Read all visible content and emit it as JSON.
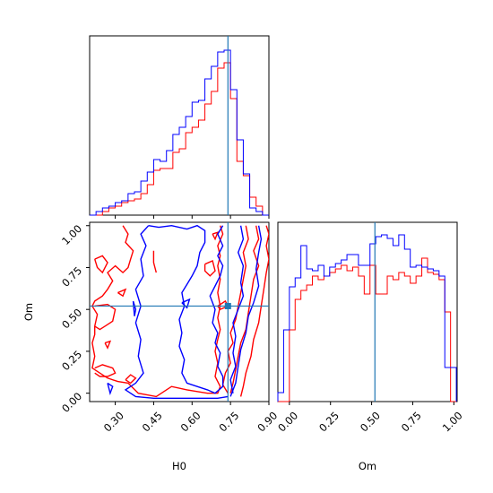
{
  "chart_data": [
    {
      "panel": "H0-marginal",
      "type": "histogram-step",
      "xlim": [
        0.2,
        0.9
      ],
      "bin_edges": [
        0.2,
        0.225,
        0.25,
        0.275,
        0.3,
        0.325,
        0.35,
        0.375,
        0.4,
        0.425,
        0.45,
        0.475,
        0.5,
        0.525,
        0.55,
        0.575,
        0.6,
        0.625,
        0.65,
        0.675,
        0.7,
        0.725,
        0.75,
        0.775,
        0.8,
        0.825,
        0.85,
        0.875,
        0.9
      ],
      "series": [
        {
          "color": "#ff0000",
          "values": [
            0,
            0,
            0.02,
            0.04,
            0.05,
            0.07,
            0.08,
            0.09,
            0.12,
            0.17,
            0.25,
            0.26,
            0.26,
            0.35,
            0.37,
            0.46,
            0.49,
            0.53,
            0.62,
            0.69,
            0.82,
            0.85,
            0.65,
            0.3,
            0.22,
            0.1,
            0.05,
            0
          ]
        },
        {
          "color": "#0000ff",
          "values": [
            0,
            0.02,
            0.04,
            0.05,
            0.07,
            0.08,
            0.12,
            0.13,
            0.19,
            0.24,
            0.31,
            0.3,
            0.36,
            0.45,
            0.49,
            0.55,
            0.63,
            0.64,
            0.76,
            0.83,
            0.91,
            0.92,
            0.7,
            0.42,
            0.23,
            0.04,
            0.02,
            0
          ]
        }
      ],
      "truth": 0.74
    },
    {
      "panel": "H0-Om-contours",
      "type": "contour",
      "xlabel": "H0",
      "ylabel": "Om",
      "xlim": [
        0.2,
        0.9
      ],
      "ylim": [
        -0.05,
        1.02
      ],
      "xticks": [
        "0.30",
        "0.45",
        "0.60",
        "0.75",
        "0.90"
      ],
      "yticks": [
        "0.00",
        "0.25",
        "0.50",
        "0.75",
        "1.00"
      ],
      "truth": [
        0.74,
        0.52
      ],
      "red_contours": [
        [
          [
            0.33,
            1.0
          ],
          [
            0.35,
            0.95
          ],
          [
            0.34,
            0.9
          ],
          [
            0.37,
            0.85
          ],
          [
            0.36,
            0.8
          ],
          [
            0.35,
            0.75
          ],
          [
            0.33,
            0.72
          ],
          [
            0.3,
            0.76
          ],
          [
            0.27,
            0.72
          ],
          [
            0.29,
            0.67
          ],
          [
            0.27,
            0.62
          ],
          [
            0.25,
            0.58
          ],
          [
            0.22,
            0.55
          ],
          [
            0.21,
            0.52
          ],
          [
            0.23,
            0.47
          ],
          [
            0.22,
            0.4
          ],
          [
            0.22,
            0.35
          ],
          [
            0.21,
            0.3
          ],
          [
            0.22,
            0.22
          ],
          [
            0.21,
            0.15
          ],
          [
            0.24,
            0.12
          ],
          [
            0.27,
            0.09
          ],
          [
            0.31,
            0.07
          ],
          [
            0.35,
            0.06
          ],
          [
            0.39,
            0.0
          ],
          [
            0.46,
            -0.02
          ],
          [
            0.52,
            0.04
          ],
          [
            0.58,
            0.02
          ],
          [
            0.62,
            0.01
          ],
          [
            0.66,
            0.0
          ],
          [
            0.7,
            0.0
          ],
          [
            0.71,
            0.04
          ],
          [
            0.69,
            0.1
          ],
          [
            0.7,
            0.18
          ],
          [
            0.69,
            0.25
          ],
          [
            0.7,
            0.32
          ],
          [
            0.71,
            0.38
          ],
          [
            0.7,
            0.45
          ],
          [
            0.71,
            0.52
          ],
          [
            0.7,
            0.6
          ],
          [
            0.71,
            0.68
          ],
          [
            0.7,
            0.76
          ],
          [
            0.71,
            0.82
          ],
          [
            0.7,
            0.88
          ],
          [
            0.72,
            0.95
          ],
          [
            0.71,
            1.0
          ]
        ],
        [
          [
            0.45,
            0.85
          ],
          [
            0.45,
            0.78
          ],
          [
            0.46,
            0.72
          ]
        ],
        [
          [
            0.74,
            0.0
          ],
          [
            0.72,
            0.05
          ],
          [
            0.73,
            0.12
          ],
          [
            0.75,
            0.18
          ],
          [
            0.74,
            0.25
          ],
          [
            0.76,
            0.3
          ],
          [
            0.75,
            0.36
          ],
          [
            0.77,
            0.44
          ],
          [
            0.78,
            0.52
          ],
          [
            0.79,
            0.6
          ],
          [
            0.8,
            0.68
          ],
          [
            0.81,
            0.76
          ],
          [
            0.8,
            0.84
          ],
          [
            0.82,
            0.92
          ],
          [
            0.81,
            1.0
          ]
        ],
        [
          [
            0.85,
            1.0
          ],
          [
            0.86,
            0.92
          ],
          [
            0.84,
            0.85
          ],
          [
            0.86,
            0.76
          ],
          [
            0.84,
            0.68
          ],
          [
            0.83,
            0.58
          ],
          [
            0.82,
            0.48
          ],
          [
            0.81,
            0.38
          ],
          [
            0.79,
            0.3
          ],
          [
            0.78,
            0.22
          ],
          [
            0.77,
            0.14
          ],
          [
            0.76,
            0.06
          ],
          [
            0.75,
            0.0
          ]
        ],
        [
          [
            0.89,
            1.0
          ],
          [
            0.9,
            0.95
          ],
          [
            0.89,
            0.88
          ],
          [
            0.9,
            0.8
          ],
          [
            0.89,
            0.72
          ],
          [
            0.88,
            0.62
          ],
          [
            0.87,
            0.52
          ],
          [
            0.86,
            0.42
          ],
          [
            0.84,
            0.32
          ],
          [
            0.83,
            0.22
          ],
          [
            0.81,
            0.12
          ],
          [
            0.8,
            0.04
          ],
          [
            0.79,
            -0.02
          ]
        ],
        [
          [
            0.22,
            0.8
          ],
          [
            0.25,
            0.82
          ],
          [
            0.27,
            0.78
          ],
          [
            0.25,
            0.72
          ],
          [
            0.23,
            0.75
          ],
          [
            0.22,
            0.8
          ]
        ],
        [
          [
            0.31,
            0.6
          ],
          [
            0.34,
            0.62
          ],
          [
            0.33,
            0.58
          ],
          [
            0.31,
            0.6
          ]
        ],
        [
          [
            0.22,
            0.52
          ],
          [
            0.27,
            0.53
          ],
          [
            0.3,
            0.5
          ],
          [
            0.29,
            0.43
          ],
          [
            0.26,
            0.4
          ],
          [
            0.24,
            0.38
          ],
          [
            0.22,
            0.4
          ]
        ],
        [
          [
            0.26,
            0.3
          ],
          [
            0.28,
            0.31
          ],
          [
            0.27,
            0.27
          ],
          [
            0.26,
            0.3
          ]
        ],
        [
          [
            0.22,
            0.15
          ],
          [
            0.25,
            0.17
          ],
          [
            0.29,
            0.15
          ],
          [
            0.3,
            0.12
          ],
          [
            0.27,
            0.1
          ],
          [
            0.24,
            0.1
          ],
          [
            0.22,
            0.12
          ]
        ],
        [
          [
            0.68,
            0.95
          ],
          [
            0.69,
            0.92
          ],
          [
            0.7,
            0.96
          ],
          [
            0.68,
            0.95
          ]
        ],
        [
          [
            0.65,
            0.77
          ],
          [
            0.68,
            0.79
          ],
          [
            0.69,
            0.73
          ],
          [
            0.67,
            0.7
          ],
          [
            0.65,
            0.73
          ],
          [
            0.65,
            0.77
          ]
        ],
        [
          [
            0.7,
            0.52
          ],
          [
            0.73,
            0.55
          ],
          [
            0.74,
            0.52
          ],
          [
            0.71,
            0.5
          ],
          [
            0.7,
            0.52
          ]
        ],
        [
          [
            0.34,
            0.08
          ],
          [
            0.36,
            0.11
          ],
          [
            0.38,
            0.09
          ],
          [
            0.36,
            0.06
          ],
          [
            0.34,
            0.08
          ]
        ]
      ],
      "blue_contours": [
        [
          [
            0.43,
            1.0
          ],
          [
            0.47,
            0.99
          ],
          [
            0.52,
            1.0
          ],
          [
            0.58,
            0.98
          ],
          [
            0.62,
            1.0
          ],
          [
            0.65,
            0.97
          ],
          [
            0.65,
            0.9
          ],
          [
            0.63,
            0.84
          ],
          [
            0.62,
            0.76
          ],
          [
            0.6,
            0.7
          ],
          [
            0.58,
            0.65
          ],
          [
            0.56,
            0.6
          ],
          [
            0.57,
            0.52
          ],
          [
            0.55,
            0.44
          ],
          [
            0.56,
            0.36
          ],
          [
            0.55,
            0.28
          ],
          [
            0.57,
            0.2
          ],
          [
            0.56,
            0.12
          ],
          [
            0.58,
            0.06
          ],
          [
            0.62,
            0.04
          ],
          [
            0.66,
            0.02
          ],
          [
            0.69,
            0.0
          ],
          [
            0.72,
            0.04
          ],
          [
            0.72,
            0.1
          ],
          [
            0.7,
            0.16
          ],
          [
            0.71,
            0.24
          ],
          [
            0.69,
            0.3
          ],
          [
            0.7,
            0.36
          ],
          [
            0.68,
            0.42
          ],
          [
            0.69,
            0.5
          ],
          [
            0.67,
            0.58
          ],
          [
            0.69,
            0.64
          ],
          [
            0.71,
            0.7
          ],
          [
            0.72,
            0.76
          ],
          [
            0.7,
            0.82
          ],
          [
            0.72,
            0.88
          ],
          [
            0.7,
            0.95
          ],
          [
            0.72,
            1.0
          ]
        ],
        [
          [
            0.43,
            1.0
          ],
          [
            0.4,
            0.95
          ],
          [
            0.42,
            0.88
          ],
          [
            0.4,
            0.8
          ],
          [
            0.41,
            0.7
          ],
          [
            0.38,
            0.62
          ],
          [
            0.4,
            0.52
          ],
          [
            0.38,
            0.42
          ],
          [
            0.4,
            0.32
          ],
          [
            0.39,
            0.22
          ],
          [
            0.41,
            0.12
          ],
          [
            0.38,
            0.06
          ],
          [
            0.34,
            0.02
          ],
          [
            0.38,
            -0.02
          ],
          [
            0.45,
            -0.03
          ],
          [
            0.55,
            -0.03
          ],
          [
            0.63,
            -0.03
          ],
          [
            0.7,
            -0.03
          ],
          [
            0.74,
            -0.02
          ]
        ],
        [
          [
            0.79,
            1.0
          ],
          [
            0.8,
            0.92
          ],
          [
            0.78,
            0.84
          ],
          [
            0.8,
            0.76
          ],
          [
            0.79,
            0.66
          ],
          [
            0.8,
            0.58
          ],
          [
            0.78,
            0.5
          ],
          [
            0.76,
            0.42
          ],
          [
            0.77,
            0.34
          ],
          [
            0.76,
            0.24
          ],
          [
            0.77,
            0.16
          ],
          [
            0.75,
            0.08
          ],
          [
            0.76,
            0.0
          ]
        ],
        [
          [
            0.86,
            1.0
          ],
          [
            0.87,
            0.92
          ],
          [
            0.86,
            0.84
          ],
          [
            0.85,
            0.74
          ],
          [
            0.86,
            0.64
          ],
          [
            0.84,
            0.54
          ],
          [
            0.82,
            0.46
          ],
          [
            0.81,
            0.36
          ],
          [
            0.79,
            0.26
          ],
          [
            0.78,
            0.16
          ],
          [
            0.77,
            0.06
          ],
          [
            0.75,
            -0.02
          ]
        ],
        [
          [
            0.56,
            0.54
          ],
          [
            0.59,
            0.56
          ],
          [
            0.58,
            0.51
          ],
          [
            0.56,
            0.54
          ]
        ],
        [
          [
            0.37,
            0.55
          ],
          [
            0.38,
            0.5
          ],
          [
            0.375,
            0.46
          ],
          [
            0.37,
            0.55
          ]
        ],
        [
          [
            0.27,
            0.06
          ],
          [
            0.28,
            0.0
          ],
          [
            0.29,
            0.04
          ],
          [
            0.27,
            0.06
          ]
        ]
      ]
    },
    {
      "panel": "Om-marginal",
      "type": "histogram-step",
      "xlabel": "Om",
      "xlim": [
        -0.07,
        1.02
      ],
      "xticks": [
        "0.00",
        "0.25",
        "0.50",
        "0.75",
        "1.00"
      ],
      "bin_edges": [
        -0.07,
        -0.035,
        0.0,
        0.035,
        0.07,
        0.105,
        0.14,
        0.175,
        0.21,
        0.245,
        0.28,
        0.315,
        0.35,
        0.385,
        0.42,
        0.455,
        0.49,
        0.525,
        0.56,
        0.595,
        0.63,
        0.665,
        0.7,
        0.735,
        0.77,
        0.805,
        0.84,
        0.875,
        0.91,
        0.945,
        0.98,
        1.015
      ],
      "series": [
        {
          "color": "#ff0000",
          "values": [
            0,
            0,
            0.4,
            0.57,
            0.62,
            0.65,
            0.7,
            0.68,
            0.7,
            0.72,
            0.74,
            0.76,
            0.73,
            0.75,
            0.7,
            0.6,
            0.76,
            0.6,
            0.6,
            0.7,
            0.68,
            0.72,
            0.7,
            0.66,
            0.7,
            0.8,
            0.72,
            0.71,
            0.68,
            0.5,
            0.0
          ]
        },
        {
          "color": "#0000ff",
          "values": [
            0.05,
            0.4,
            0.64,
            0.69,
            0.87,
            0.74,
            0.73,
            0.76,
            0.7,
            0.75,
            0.77,
            0.79,
            0.82,
            0.82,
            0.76,
            0.76,
            0.88,
            0.92,
            0.93,
            0.91,
            0.87,
            0.93,
            0.85,
            0.75,
            0.76,
            0.75,
            0.74,
            0.73,
            0.7,
            0.19,
            0.19
          ]
        }
      ],
      "truth": 0.52
    }
  ],
  "colors": {
    "red": "#ff0000",
    "blue": "#0000ff",
    "truth": "#1f77b4"
  }
}
